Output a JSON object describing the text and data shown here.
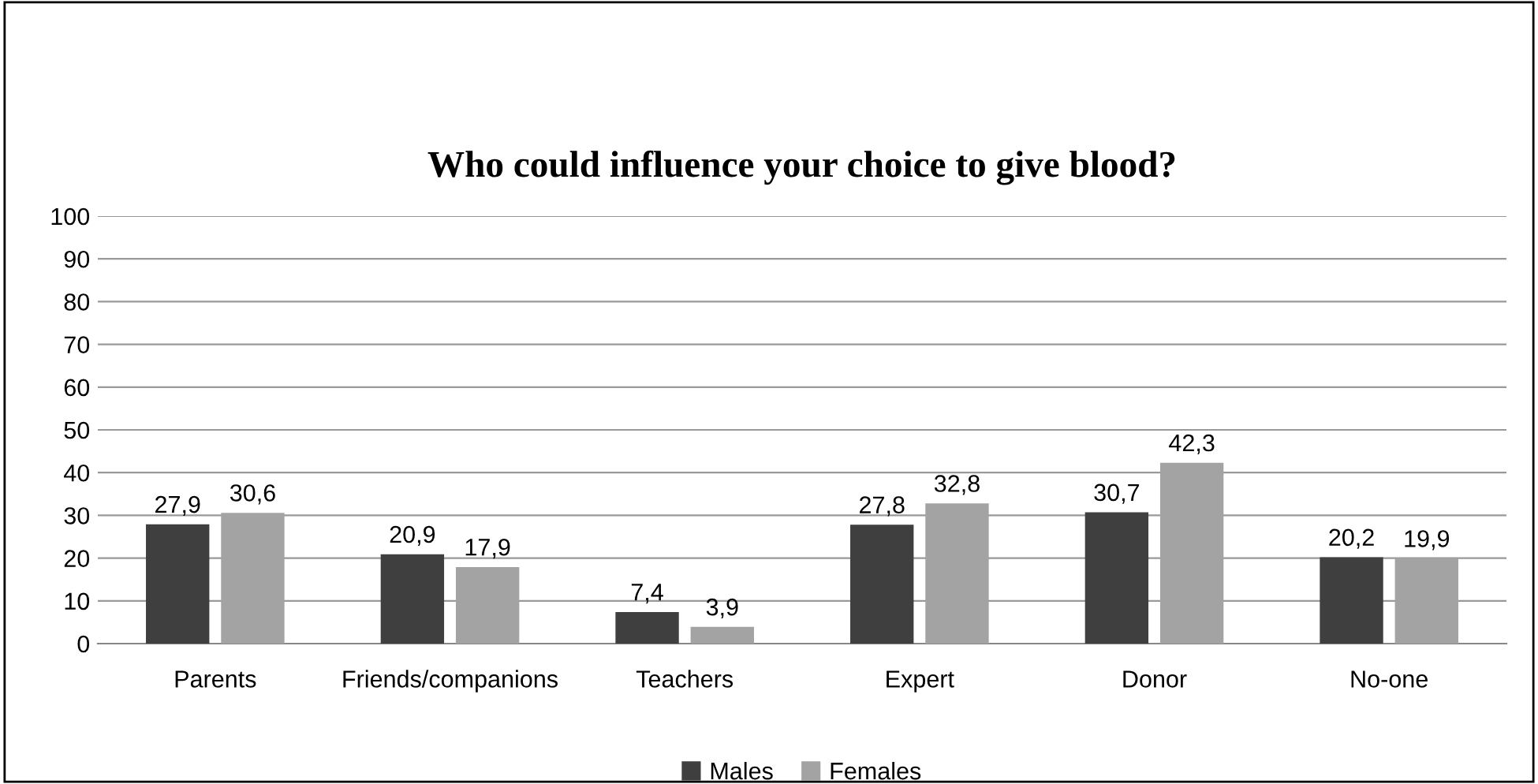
{
  "chart_data": {
    "type": "bar",
    "title": "Who could influence your choice to give blood?",
    "categories": [
      "Parents",
      "Friends/companions",
      "Teachers",
      "Expert",
      "Donor",
      "No-one"
    ],
    "series": [
      {
        "name": "Males",
        "color": "#3f3f3f",
        "values": [
          27.9,
          20.9,
          7.4,
          27.8,
          30.7,
          20.2
        ],
        "value_labels": [
          "27,9",
          "20,9",
          "7,4",
          "27,8",
          "30,7",
          "20,2"
        ]
      },
      {
        "name": "Females",
        "color": "#a3a3a3",
        "values": [
          30.6,
          17.9,
          3.9,
          32.8,
          42.3,
          19.9
        ],
        "value_labels": [
          "30,6",
          "17,9",
          "3,9",
          "32,8",
          "42,3",
          "19,9"
        ]
      }
    ],
    "ylim": [
      0,
      100
    ],
    "yticks": [
      0,
      10,
      20,
      30,
      40,
      50,
      60,
      70,
      80,
      90,
      100
    ],
    "grid": "y",
    "legend": "bottom"
  }
}
